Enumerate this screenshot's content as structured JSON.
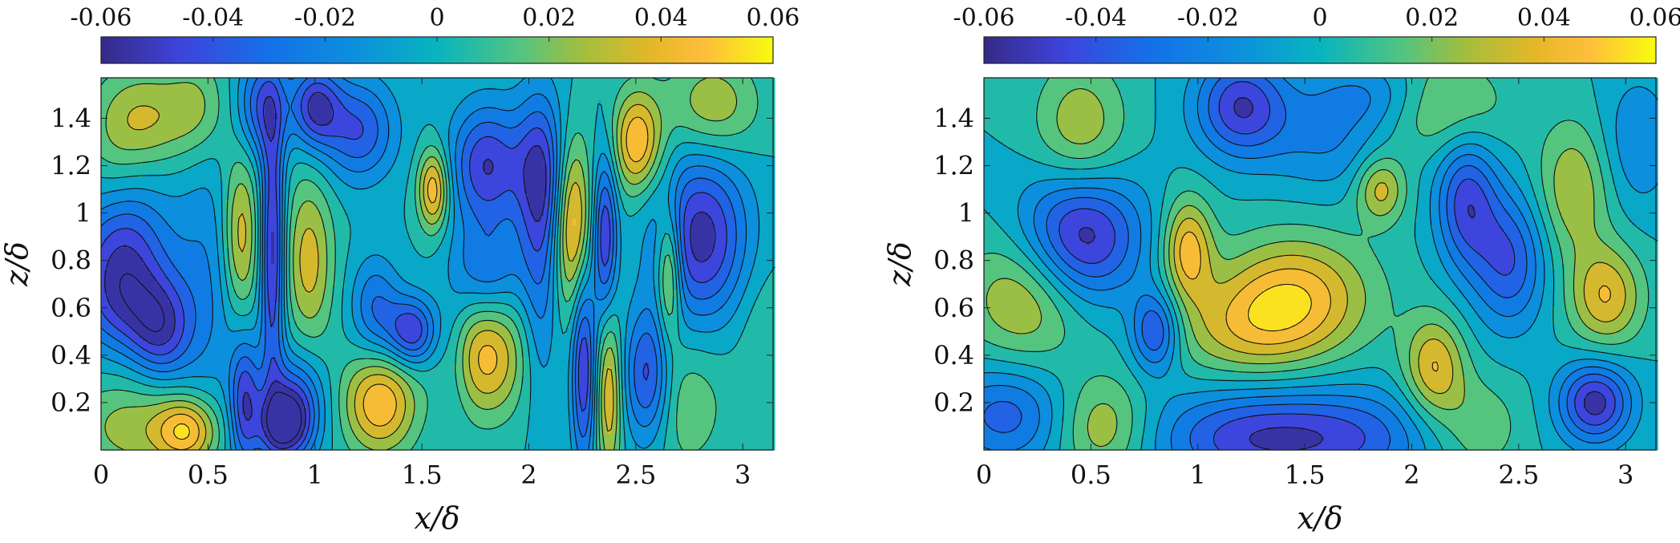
{
  "chart_data": [
    {
      "type": "heatmap",
      "title": "",
      "xlabel": "x/δ",
      "ylabel": "z/δ",
      "xlim": [
        0,
        3.1416
      ],
      "ylim": [
        0,
        1.5708
      ],
      "x_ticks": [
        "0",
        "0.5",
        "1",
        "1.5",
        "2",
        "2.5",
        "3"
      ],
      "y_ticks": [
        "0.2",
        "0.4",
        "0.6",
        "0.8",
        "1",
        "1.2",
        "1.4"
      ],
      "colorbar": {
        "location": "top",
        "range": [
          -0.06,
          0.06
        ],
        "ticks": [
          "-0.06",
          "-0.04",
          "-0.02",
          "0",
          "0.02",
          "0.04",
          "0.06"
        ],
        "colormap": "parula"
      },
      "contour_levels": [
        -0.06,
        -0.05,
        -0.04,
        -0.03,
        -0.02,
        -0.01,
        0,
        0.01,
        0.02,
        0.03,
        0.04,
        0.05,
        0.06
      ],
      "features": [
        {
          "x": 0.4,
          "z": 0.08,
          "value": 0.045,
          "sx": 0.1,
          "sz": 0.1
        },
        {
          "x": 0.15,
          "z": 0.1,
          "value": 0.025,
          "sx": 0.2,
          "sz": 0.15
        },
        {
          "x": 0.1,
          "z": 0.85,
          "value": -0.045,
          "sx": 0.15,
          "sz": 0.2
        },
        {
          "x": 0.1,
          "z": 0.6,
          "value": -0.03,
          "sx": 0.15,
          "sz": 0.15
        },
        {
          "x": 0.28,
          "z": 0.5,
          "value": -0.04,
          "sx": 0.1,
          "sz": 0.15
        },
        {
          "x": 0.2,
          "z": 1.4,
          "value": 0.03,
          "sx": 0.15,
          "sz": 0.15
        },
        {
          "x": 0.05,
          "z": 1.2,
          "value": 0.01,
          "sx": 0.1,
          "sz": 0.2
        },
        {
          "x": 0.45,
          "z": 1.45,
          "value": 0.02,
          "sx": 0.1,
          "sz": 0.15
        },
        {
          "x": 0.5,
          "z": 0.7,
          "value": -0.02,
          "sx": 0.12,
          "sz": 0.4
        },
        {
          "x": 0.65,
          "z": 0.9,
          "value": 0.04,
          "sx": 0.06,
          "sz": 0.25
        },
        {
          "x": 0.67,
          "z": 0.2,
          "value": -0.045,
          "sx": 0.05,
          "sz": 0.2
        },
        {
          "x": 0.8,
          "z": 0.85,
          "value": -0.055,
          "sx": 0.04,
          "sz": 0.4
        },
        {
          "x": 0.85,
          "z": 0.1,
          "value": -0.05,
          "sx": 0.08,
          "sz": 0.1
        },
        {
          "x": 0.75,
          "z": 1.45,
          "value": -0.04,
          "sx": 0.08,
          "sz": 0.15
        },
        {
          "x": 0.97,
          "z": 0.8,
          "value": 0.035,
          "sx": 0.08,
          "sz": 0.25
        },
        {
          "x": 0.9,
          "z": 0.2,
          "value": -0.04,
          "sx": 0.1,
          "sz": 0.15
        },
        {
          "x": 1.0,
          "z": 1.45,
          "value": -0.05,
          "sx": 0.08,
          "sz": 0.12
        },
        {
          "x": 1.2,
          "z": 1.35,
          "value": -0.04,
          "sx": 0.12,
          "sz": 0.15
        },
        {
          "x": 1.3,
          "z": 0.2,
          "value": 0.05,
          "sx": 0.12,
          "sz": 0.15
        },
        {
          "x": 1.28,
          "z": 0.6,
          "value": -0.03,
          "sx": 0.08,
          "sz": 0.15
        },
        {
          "x": 1.45,
          "z": 0.5,
          "value": -0.05,
          "sx": 0.08,
          "sz": 0.1
        },
        {
          "x": 1.55,
          "z": 1.1,
          "value": 0.05,
          "sx": 0.05,
          "sz": 0.12
        },
        {
          "x": 1.65,
          "z": 0.4,
          "value": -0.01,
          "sx": 0.05,
          "sz": 0.2
        },
        {
          "x": 1.8,
          "z": 1.2,
          "value": -0.05,
          "sx": 0.12,
          "sz": 0.18
        },
        {
          "x": 1.8,
          "z": 0.4,
          "value": 0.045,
          "sx": 0.12,
          "sz": 0.18
        },
        {
          "x": 1.8,
          "z": 0.75,
          "value": -0.03,
          "sx": 0.12,
          "sz": 0.15
        },
        {
          "x": 2.05,
          "z": 1.15,
          "value": -0.05,
          "sx": 0.08,
          "sz": 0.25
        },
        {
          "x": 2.05,
          "z": 0.6,
          "value": -0.02,
          "sx": 0.06,
          "sz": 0.3
        },
        {
          "x": 2.2,
          "z": 0.95,
          "value": 0.05,
          "sx": 0.06,
          "sz": 0.25
        },
        {
          "x": 2.25,
          "z": 0.35,
          "value": -0.05,
          "sx": 0.04,
          "sz": 0.3
        },
        {
          "x": 2.35,
          "z": 0.9,
          "value": -0.05,
          "sx": 0.04,
          "sz": 0.25
        },
        {
          "x": 2.37,
          "z": 0.25,
          "value": 0.04,
          "sx": 0.04,
          "sz": 0.25
        },
        {
          "x": 2.5,
          "z": 1.3,
          "value": 0.05,
          "sx": 0.08,
          "sz": 0.15
        },
        {
          "x": 2.55,
          "z": 0.3,
          "value": -0.05,
          "sx": 0.08,
          "sz": 0.2
        },
        {
          "x": 2.65,
          "z": 0.75,
          "value": 0.045,
          "sx": 0.04,
          "sz": 0.2
        },
        {
          "x": 2.8,
          "z": 0.9,
          "value": -0.055,
          "sx": 0.15,
          "sz": 0.25
        },
        {
          "x": 2.85,
          "z": 1.45,
          "value": 0.03,
          "sx": 0.15,
          "sz": 0.15
        },
        {
          "x": 2.7,
          "z": 0.2,
          "value": 0.02,
          "sx": 0.15,
          "sz": 0.2
        },
        {
          "x": 3.1,
          "z": 0.5,
          "value": 0.01,
          "sx": 0.1,
          "sz": 0.2
        }
      ]
    },
    {
      "type": "heatmap",
      "title": "",
      "xlabel": "x/δ",
      "ylabel": "z/δ",
      "xlim": [
        0,
        3.1416
      ],
      "ylim": [
        0,
        1.5708
      ],
      "x_ticks": [
        "0",
        "0.5",
        "1",
        "1.5",
        "2",
        "2.5",
        "3"
      ],
      "y_ticks": [
        "0.2",
        "0.4",
        "0.6",
        "0.8",
        "1",
        "1.2",
        "1.4"
      ],
      "colorbar": {
        "location": "top",
        "range": [
          -0.06,
          0.06
        ],
        "ticks": [
          "-0.06",
          "-0.04",
          "-0.02",
          "0",
          "0.02",
          "0.04",
          "0.06"
        ],
        "colormap": "parula"
      },
      "contour_levels": [
        -0.06,
        -0.05,
        -0.04,
        -0.03,
        -0.02,
        -0.01,
        0,
        0.01,
        0.02,
        0.03,
        0.04,
        0.05,
        0.06
      ],
      "features": [
        {
          "x": 0.45,
          "z": 0.9,
          "value": -0.06,
          "sx": 0.2,
          "sz": 0.2
        },
        {
          "x": 0.2,
          "z": 0.65,
          "value": 0.035,
          "sx": 0.2,
          "sz": 0.2
        },
        {
          "x": 0.1,
          "z": 0.15,
          "value": -0.035,
          "sx": 0.2,
          "sz": 0.15
        },
        {
          "x": 0.55,
          "z": 0.1,
          "value": 0.03,
          "sx": 0.15,
          "sz": 0.15
        },
        {
          "x": 0.45,
          "z": 1.35,
          "value": 0.03,
          "sx": 0.15,
          "sz": 0.2
        },
        {
          "x": 0.8,
          "z": 0.5,
          "value": -0.045,
          "sx": 0.08,
          "sz": 0.12
        },
        {
          "x": 0.95,
          "z": 0.85,
          "value": 0.045,
          "sx": 0.08,
          "sz": 0.15
        },
        {
          "x": 1.45,
          "z": 0.65,
          "value": 0.045,
          "sx": 0.25,
          "sz": 0.18
        },
        {
          "x": 1.2,
          "z": 0.5,
          "value": 0.025,
          "sx": 0.25,
          "sz": 0.15
        },
        {
          "x": 1.2,
          "z": 1.45,
          "value": -0.05,
          "sx": 0.15,
          "sz": 0.15
        },
        {
          "x": 1.2,
          "z": 0.05,
          "value": -0.04,
          "sx": 0.3,
          "sz": 0.15
        },
        {
          "x": 1.7,
          "z": 0.05,
          "value": -0.035,
          "sx": 0.3,
          "sz": 0.15
        },
        {
          "x": 1.85,
          "z": 1.1,
          "value": 0.035,
          "sx": 0.08,
          "sz": 0.1
        },
        {
          "x": 1.6,
          "z": 1.3,
          "value": -0.02,
          "sx": 0.2,
          "sz": 0.15
        },
        {
          "x": 2.1,
          "z": 0.35,
          "value": 0.04,
          "sx": 0.1,
          "sz": 0.15
        },
        {
          "x": 2.25,
          "z": 1.05,
          "value": -0.045,
          "sx": 0.1,
          "sz": 0.2
        },
        {
          "x": 2.45,
          "z": 0.8,
          "value": -0.04,
          "sx": 0.12,
          "sz": 0.2
        },
        {
          "x": 2.75,
          "z": 1.1,
          "value": 0.03,
          "sx": 0.12,
          "sz": 0.2
        },
        {
          "x": 2.9,
          "z": 0.65,
          "value": 0.04,
          "sx": 0.12,
          "sz": 0.15
        },
        {
          "x": 2.85,
          "z": 0.2,
          "value": -0.055,
          "sx": 0.12,
          "sz": 0.12
        },
        {
          "x": 2.3,
          "z": 0.1,
          "value": 0.02,
          "sx": 0.15,
          "sz": 0.15
        },
        {
          "x": 2.15,
          "z": 1.45,
          "value": 0.025,
          "sx": 0.2,
          "sz": 0.15
        },
        {
          "x": 3.05,
          "z": 1.3,
          "value": -0.02,
          "sx": 0.12,
          "sz": 0.2
        },
        {
          "x": 1.8,
          "z": 1.5,
          "value": -0.02,
          "sx": 0.2,
          "sz": 0.1
        }
      ]
    }
  ]
}
